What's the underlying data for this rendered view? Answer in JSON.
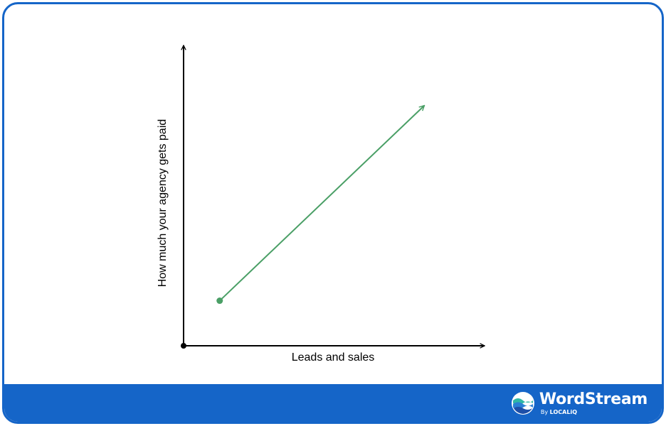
{
  "chart_data": {
    "type": "line",
    "title": "",
    "xlabel": "Leads and sales",
    "ylabel": "How much your agency gets paid",
    "series": [
      {
        "color": "#4a9f66",
        "x": [
          0.12,
          0.8
        ],
        "y": [
          0.15,
          0.8
        ]
      }
    ],
    "xlim": [
      0,
      1
    ],
    "ylim": [
      0,
      1
    ],
    "grid": false,
    "axis_ticks": false
  },
  "colors": {
    "frame": "#1565c8",
    "axis": "#000000",
    "line": "#4a9f66"
  },
  "brand": {
    "name": "WordStream",
    "by": "By",
    "partner": "LOCALiQ",
    "logo_icon": "wave-circle-icon"
  }
}
